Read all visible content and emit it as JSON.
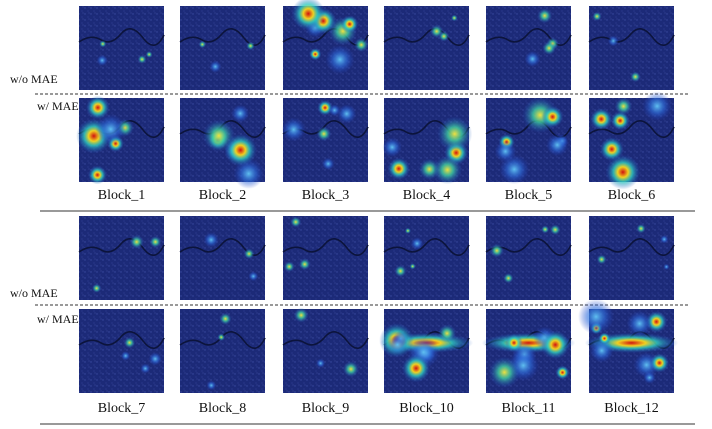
{
  "groups": [
    {
      "rows": [
        "w/o MAE",
        "w/ MAE"
      ],
      "blocks": [
        "Block_1",
        "Block_2",
        "Block_3",
        "Block_4",
        "Block_5",
        "Block_6"
      ]
    },
    {
      "rows": [
        "w/o MAE",
        "w/ MAE"
      ],
      "blocks": [
        "Block_7",
        "Block_8",
        "Block_9",
        "Block_10",
        "Block_11",
        "Block_12"
      ]
    }
  ]
}
